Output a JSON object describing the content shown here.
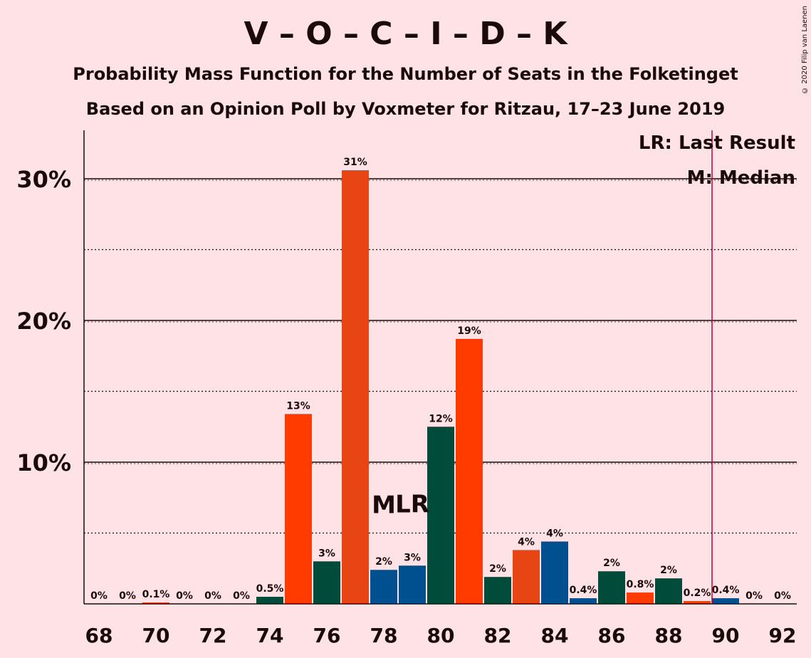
{
  "title": "V – O – C – I – D – K",
  "subtitle1": "Probability Mass Function for the Number of Seats in the Folketinget",
  "subtitle2": "Based on an Opinion Poll by Voxmeter for Ritzau, 17–23 June 2019",
  "copyright": "© 2020 Filip van Laenen",
  "legend": {
    "last_result": "LR: Last Result",
    "median": "M: Median"
  },
  "markers": {
    "median_label": "M",
    "median_seat": 78,
    "lr_label": "LR",
    "lr_seat": 79
  },
  "majority_line_seat": 90,
  "colors": {
    "background": "#FFE2E6",
    "majority_line": "#C0003A",
    "text": "#1a0a0a"
  },
  "chart_data": {
    "type": "bar",
    "x": [
      68,
      69,
      70,
      71,
      72,
      73,
      74,
      75,
      76,
      77,
      78,
      79,
      80,
      81,
      82,
      83,
      84,
      85,
      86,
      87,
      88,
      89,
      90,
      91,
      92
    ],
    "values": [
      0,
      0,
      0.1,
      0,
      0,
      0,
      0.5,
      13.4,
      3.0,
      30.6,
      2.4,
      2.7,
      12.5,
      18.7,
      1.9,
      3.8,
      4.4,
      0.4,
      2.3,
      0.8,
      1.8,
      0.2,
      0.4,
      0,
      0
    ],
    "labels": [
      "0%",
      "0%",
      "0.1%",
      "0%",
      "0%",
      "0%",
      "0.5%",
      "13%",
      "3%",
      "31%",
      "2%",
      "3%",
      "12%",
      "19%",
      "2%",
      "4%",
      "4%",
      "0.4%",
      "2%",
      "0.8%",
      "2%",
      "0.2%",
      "0.4%",
      "0%",
      "0%"
    ],
    "bar_colors": [
      "#004B3A",
      "#FF3B00",
      "#E84514",
      "#00508F",
      "#004B3A",
      "#FF3B00",
      "#004B3A",
      "#FF3B00",
      "#004B3A",
      "#E84514",
      "#00508F",
      "#00508F",
      "#004B3A",
      "#FF3B00",
      "#004B3A",
      "#E84514",
      "#00508F",
      "#00508F",
      "#004B3A",
      "#FF3B00",
      "#004B3A",
      "#E84514",
      "#00508F",
      "#00508F",
      "#004B3A"
    ],
    "x_ticks": [
      68,
      70,
      72,
      74,
      76,
      78,
      80,
      82,
      84,
      86,
      88,
      90,
      92
    ],
    "x_tick_labels": [
      "68",
      "70",
      "72",
      "74",
      "76",
      "78",
      "80",
      "82",
      "84",
      "86",
      "88",
      "90",
      "92"
    ],
    "y_ticks": [
      10,
      20,
      30
    ],
    "y_tick_labels": [
      "10%",
      "20%",
      "30%"
    ],
    "ylim": [
      0,
      33.5
    ],
    "xlabel": "",
    "ylabel": ""
  }
}
